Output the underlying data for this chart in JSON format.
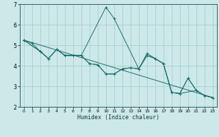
{
  "xlabel": "Humidex (Indice chaleur)",
  "bg_color": "#cce8e8",
  "grid_color": "#aacece",
  "line_color": "#1a6b6b",
  "xlim": [
    -0.5,
    23.5
  ],
  "ylim": [
    2,
    7
  ],
  "yticks": [
    2,
    3,
    4,
    5,
    6,
    7
  ],
  "xticks": [
    0,
    1,
    2,
    3,
    4,
    5,
    6,
    7,
    8,
    9,
    10,
    11,
    12,
    13,
    14,
    15,
    16,
    17,
    18,
    19,
    20,
    21,
    22,
    23
  ],
  "series": [
    {
      "x": [
        0,
        1,
        2,
        3,
        4,
        5,
        6,
        7,
        8,
        9,
        10,
        11,
        12,
        13,
        14,
        15,
        16,
        17,
        18,
        19,
        20,
        21,
        22,
        23
      ],
      "y": [
        5.25,
        5.1,
        4.7,
        4.35,
        4.8,
        4.5,
        4.5,
        4.5,
        4.1,
        4.05,
        3.6,
        3.6,
        3.85,
        3.9,
        3.85,
        4.5,
        4.35,
        4.1,
        2.7,
        2.65,
        3.4,
        2.8,
        2.55,
        2.45
      ],
      "marker": true
    },
    {
      "x": [
        0,
        2,
        3,
        4,
        5,
        6,
        7,
        10,
        11,
        14,
        15,
        16,
        17,
        18,
        19,
        21,
        22,
        23
      ],
      "y": [
        5.25,
        4.7,
        4.35,
        4.8,
        4.5,
        4.5,
        4.5,
        6.85,
        6.3,
        3.85,
        4.6,
        4.35,
        4.1,
        2.7,
        2.65,
        2.8,
        2.55,
        2.45
      ],
      "marker": true
    },
    {
      "x": [
        0,
        2,
        3,
        4,
        5,
        6,
        7,
        8,
        9,
        10,
        11,
        12,
        13,
        14,
        15,
        16,
        17,
        18,
        19,
        20,
        21,
        22,
        23
      ],
      "y": [
        5.25,
        4.7,
        4.35,
        4.8,
        4.5,
        4.5,
        4.5,
        4.1,
        4.05,
        3.6,
        3.6,
        3.85,
        3.9,
        3.85,
        4.5,
        4.35,
        4.1,
        2.7,
        2.65,
        3.4,
        2.8,
        2.55,
        2.45
      ],
      "marker": true
    },
    {
      "x": [
        0,
        23
      ],
      "y": [
        5.25,
        2.45
      ],
      "marker": false
    }
  ]
}
